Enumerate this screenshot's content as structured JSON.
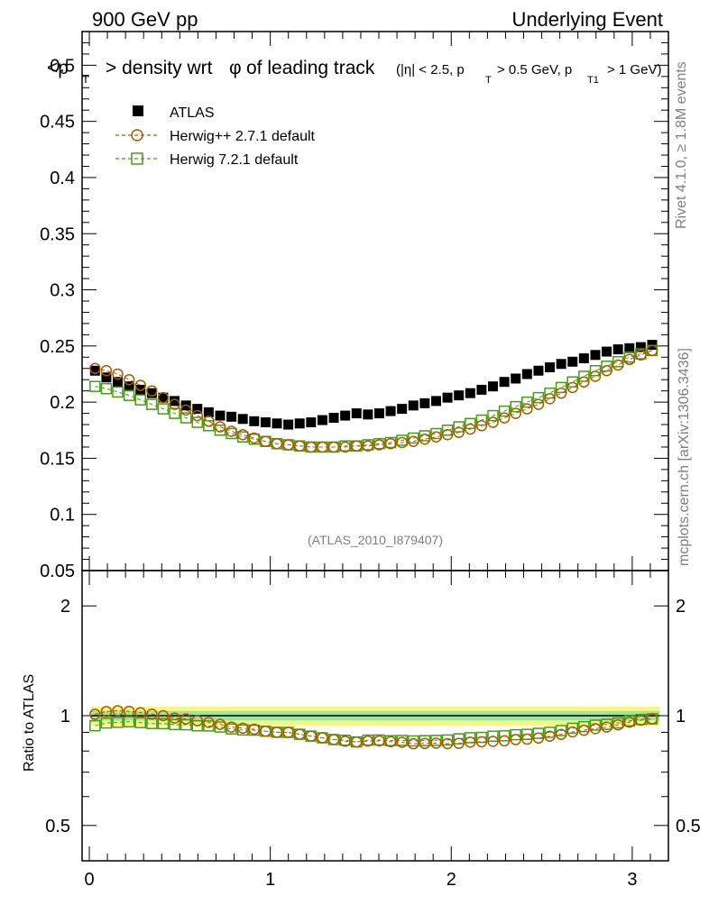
{
  "header": {
    "left": "900 GeV pp",
    "right": "Underlying Event"
  },
  "side_text": {
    "rivet": "Rivet 4.1.0, ≥ 1.8M events",
    "mcplots": "mcplots.cern.ch [arXiv:1306.3436]"
  },
  "watermark": "(ATLAS_2010_I879407)",
  "chart_data": {
    "type": "scatter",
    "title": "<pT> density wrt φ of leading track (|η| < 2.5, pT > 0.5 GeV, pT1 > 1 GeV)",
    "title_main": "<p",
    "title_main_sub": "T",
    "title_main_rest": "> density wrt",
    "title_phi": "φ",
    "title_rest": "of leading track",
    "title_cut_a": "(|η| < 2.5, p",
    "title_cut_b": "> 0.5 GeV, p",
    "title_cut_c": "> 1 GeV)",
    "sub_T": "T",
    "sub_T1": "T1",
    "xlabel": "",
    "ylabel": "",
    "xlim": [
      -0.04,
      3.2
    ],
    "ylim": [
      0.05,
      0.53
    ],
    "yticks": [
      "0.05",
      "0.1",
      "0.15",
      "0.2",
      "0.25",
      "0.3",
      "0.35",
      "0.4",
      "0.45",
      "0.5"
    ],
    "ytick_values": [
      0.05,
      0.1,
      0.15,
      0.2,
      0.25,
      0.3,
      0.35,
      0.4,
      0.45,
      0.5
    ],
    "xticks": [
      "0",
      "1",
      "2",
      "3"
    ],
    "xtick_values": [
      0,
      1,
      2,
      3
    ],
    "ratio": {
      "ylabel": "Ratio to ATLAS",
      "yticks": [
        "0.5",
        "1",
        "2"
      ],
      "ytick_values": [
        0.5,
        1,
        2
      ],
      "ylim": [
        0.4,
        2.5
      ],
      "band_inner": [
        0.97,
        1.03
      ],
      "band_outer": [
        0.94,
        1.06
      ]
    },
    "legend": [
      {
        "name": "ATLAS",
        "marker": "filled-square",
        "color": "#000000"
      },
      {
        "name": "Herwig++ 2.7.1 default",
        "marker": "open-circle",
        "color": "#a65c00"
      },
      {
        "name": "Herwig 7.2.1 default",
        "marker": "open-square",
        "color": "#4a9a16"
      }
    ],
    "x": [
      0.0314,
      0.0942,
      0.157,
      0.2199,
      0.2827,
      0.3456,
      0.4084,
      0.4712,
      0.5341,
      0.5969,
      0.6597,
      0.7226,
      0.7854,
      0.8482,
      0.9111,
      0.9739,
      1.0367,
      1.0996,
      1.1624,
      1.2252,
      1.2881,
      1.3509,
      1.4137,
      1.4766,
      1.5394,
      1.6022,
      1.6651,
      1.7279,
      1.7907,
      1.8536,
      1.9164,
      1.9792,
      2.0421,
      2.1049,
      2.1677,
      2.2306,
      2.2934,
      2.3562,
      2.4191,
      2.4819,
      2.5447,
      2.6076,
      2.6704,
      2.7332,
      2.7961,
      2.8589,
      2.9217,
      2.9846,
      3.0474,
      3.1102
    ],
    "series": [
      {
        "name": "ATLAS",
        "values": [
          0.228,
          0.222,
          0.218,
          0.214,
          0.211,
          0.208,
          0.204,
          0.201,
          0.197,
          0.194,
          0.191,
          0.188,
          0.187,
          0.185,
          0.183,
          0.182,
          0.181,
          0.18,
          0.181,
          0.182,
          0.184,
          0.186,
          0.188,
          0.19,
          0.189,
          0.19,
          0.192,
          0.194,
          0.197,
          0.199,
          0.201,
          0.204,
          0.206,
          0.208,
          0.211,
          0.214,
          0.218,
          0.221,
          0.225,
          0.228,
          0.231,
          0.234,
          0.236,
          0.239,
          0.242,
          0.245,
          0.247,
          0.248,
          0.249,
          0.251
        ]
      },
      {
        "name": "Herwig++ 2.7.1 default",
        "values": [
          0.23,
          0.228,
          0.225,
          0.22,
          0.215,
          0.21,
          0.204,
          0.198,
          0.193,
          0.188,
          0.183,
          0.178,
          0.174,
          0.171,
          0.168,
          0.165,
          0.163,
          0.162,
          0.161,
          0.16,
          0.16,
          0.16,
          0.16,
          0.161,
          0.161,
          0.162,
          0.163,
          0.164,
          0.165,
          0.167,
          0.169,
          0.171,
          0.173,
          0.176,
          0.179,
          0.182,
          0.186,
          0.19,
          0.194,
          0.198,
          0.203,
          0.208,
          0.213,
          0.218,
          0.223,
          0.228,
          0.233,
          0.238,
          0.242,
          0.246
        ]
      },
      {
        "name": "Herwig 7.2.1 default",
        "values": [
          0.214,
          0.212,
          0.209,
          0.206,
          0.202,
          0.198,
          0.194,
          0.19,
          0.186,
          0.182,
          0.179,
          0.175,
          0.172,
          0.169,
          0.167,
          0.165,
          0.163,
          0.162,
          0.161,
          0.16,
          0.16,
          0.16,
          0.161,
          0.161,
          0.162,
          0.163,
          0.164,
          0.166,
          0.168,
          0.17,
          0.172,
          0.175,
          0.178,
          0.181,
          0.184,
          0.188,
          0.192,
          0.196,
          0.2,
          0.204,
          0.208,
          0.213,
          0.218,
          0.223,
          0.228,
          0.232,
          0.236,
          0.24,
          0.243,
          0.246
        ]
      }
    ]
  }
}
